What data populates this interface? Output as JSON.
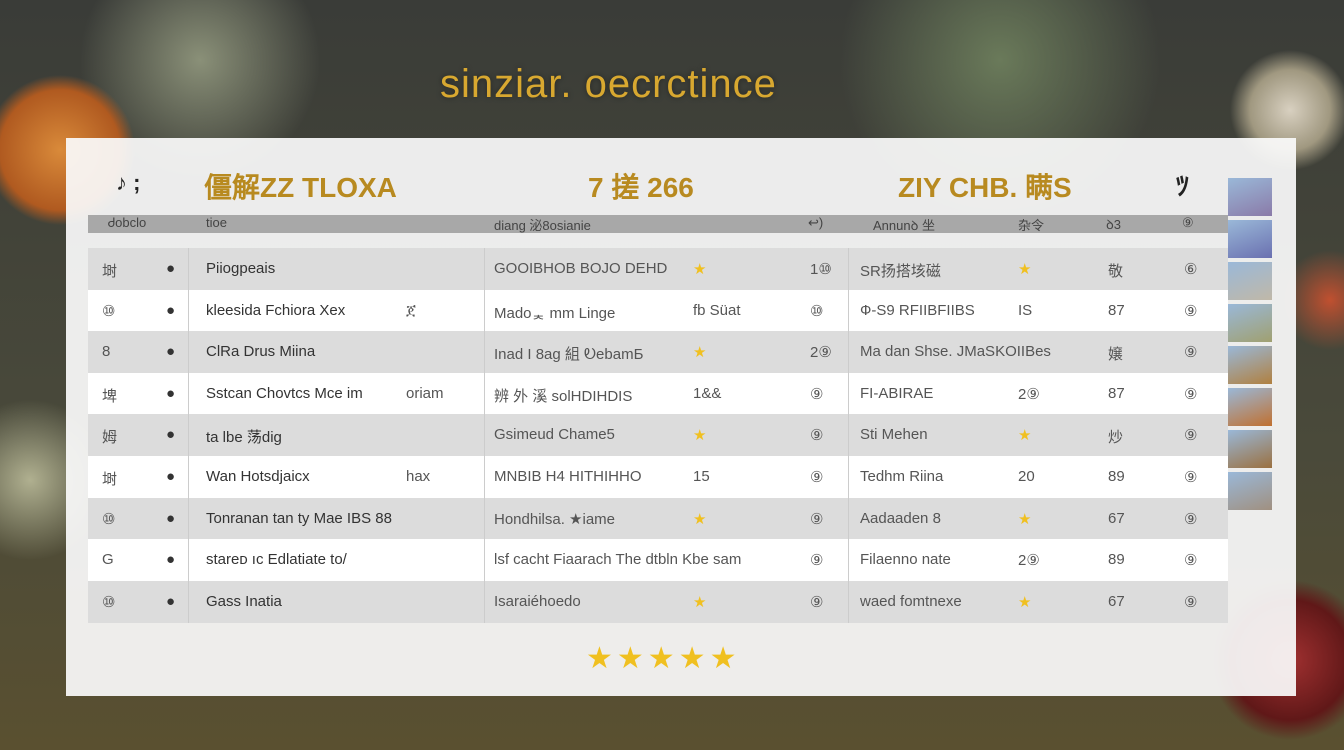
{
  "logo": "sinziar. oecrctince",
  "header": {
    "left_icons": "♪ ;",
    "title": "僵解ZZ TLOXA",
    "center": "7 搓 266",
    "right": "ZIY CHB. 瞒S",
    "right_icon": "ﾂ"
  },
  "columns": [
    "Ꮷobclo",
    "tioe",
    "diang 泌8osianie",
    "↩)",
    "Annunꝺ 坐",
    "杂令",
    "ꝺ3",
    "⑨"
  ],
  "rows": [
    {
      "n": "埘",
      "name": "Piiogpeais",
      "c2": "GOOIBHOB BOJO DEHD",
      "c2b": "★",
      "c3": "1⑩",
      "c4": "SR扬搭垓磁",
      "c4b": "★",
      "c5": "敬",
      "c6": "⑥"
    },
    {
      "n": "⑩",
      "name": "kleesida Fchiora Xex",
      "nameb": "ጀ",
      "c2": "Madoᆾ mm Linge",
      "c2b": "fb  Süat",
      "c3": "⑩",
      "c4": "Ф-S9 RFIIBFIIBS",
      "c4b": "IS",
      "c5": "87",
      "c6": "⑨"
    },
    {
      "n": "8",
      "name": "ClRa   Drus Miina",
      "c2": "Inad I 8ag 組 ᎧebamБ",
      "c2b": "★",
      "c3": "2⑨",
      "c4": "Ma dan Shse. JMaSKOIIBes",
      "c4b": "",
      "c5": "嬢",
      "c6": "⑨"
    },
    {
      "n": "埤",
      "name": "Sstcan Chovtcs Mce   im",
      "nameb": "oriam",
      "c2": "辨 外 溪 solHDIHDIS",
      "c2b": "1&&",
      "c3": "⑨",
      "c4": "FI-ABIRAE",
      "c4b": "2⑨",
      "c5": "87",
      "c6": "⑨"
    },
    {
      "n": "姆",
      "name": "ta lbe 荡dig",
      "c2": "Gsimeud Chame5",
      "c2b": "★",
      "c3": "⑨",
      "c4": "Sti Mehen",
      "c4b": "★",
      "c5": "炒",
      "c6": "⑨"
    },
    {
      "n": "埘",
      "name": "Wan Hotsdjaicx",
      "nameb": "hax",
      "c2": "MNBIB H4  HITHIHHO",
      "c2b": "15",
      "c3": "⑨",
      "c4": "Tedhm Riina",
      "c4b": "20",
      "c5": "89",
      "c6": "⑨"
    },
    {
      "n": "⑩",
      "name": "Tonranan tan ty Mae  IBS  88",
      "c2": "Hondhilsa.   ★iame",
      "c2b": "★",
      "c3": "⑨",
      "c4": "Aadaaden 8",
      "c4b": "★",
      "c5": "67",
      "c6": "⑨"
    },
    {
      "n": "G",
      "name": "stareᴅ ıc   Edlatiate to/",
      "c2": "lsf cacht Fiaarach The dtbln Kbe sam",
      "c2b": "",
      "c3": "⑨",
      "c4": "Filaenno nate",
      "c4b": "2⑨",
      "c5": "89",
      "c6": "⑨"
    },
    {
      "n": "⑩",
      "name": "Gass Inatia",
      "c2": "Isaraiéhoedo",
      "c2b": "★",
      "c3": "⑨",
      "c4": "waed fomtnexe",
      "c4b": "★",
      "c5": "67",
      "c6": "⑨"
    }
  ],
  "rating": "★★★★★",
  "colors": {
    "accent": "#b88a20",
    "star": "#f0c020"
  }
}
